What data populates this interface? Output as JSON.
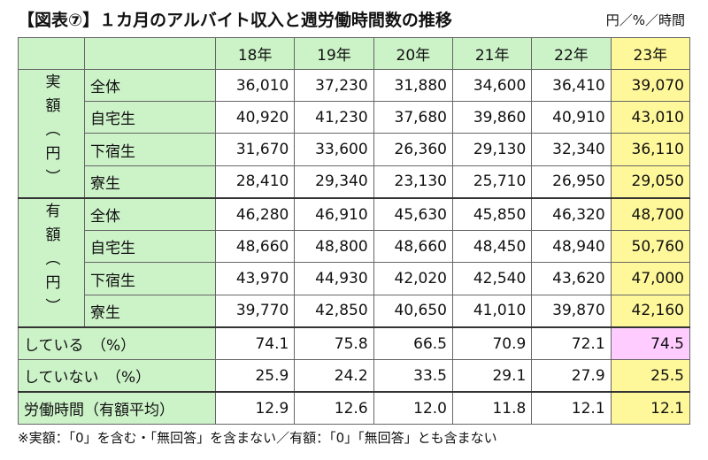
{
  "title": "【図表⑦】１カ月のアルバイト収入と週労働時間数の推移",
  "units": "円／%／時間",
  "columns": [
    "18年",
    "19年",
    "20年",
    "21年",
    "22年",
    "23年"
  ],
  "sections": [
    {
      "label": "実額（円）",
      "rows": [
        {
          "label": "全体",
          "values": [
            "36,010",
            "37,230",
            "31,880",
            "34,600",
            "36,410",
            "39,070"
          ]
        },
        {
          "label": "自宅生",
          "values": [
            "40,920",
            "41,230",
            "37,680",
            "39,860",
            "40,910",
            "43,010"
          ]
        },
        {
          "label": "下宿生",
          "values": [
            "31,670",
            "33,600",
            "26,360",
            "29,130",
            "32,340",
            "36,110"
          ]
        },
        {
          "label": "寮生",
          "values": [
            "28,410",
            "29,340",
            "23,130",
            "25,710",
            "26,950",
            "29,050"
          ]
        }
      ]
    },
    {
      "label": "有額（円）",
      "rows": [
        {
          "label": "全体",
          "values": [
            "46,280",
            "46,910",
            "45,630",
            "45,850",
            "46,320",
            "48,700"
          ]
        },
        {
          "label": "自宅生",
          "values": [
            "48,660",
            "48,800",
            "48,660",
            "48,450",
            "48,940",
            "50,760"
          ]
        },
        {
          "label": "下宿生",
          "values": [
            "43,970",
            "44,930",
            "42,020",
            "42,540",
            "43,620",
            "47,000"
          ]
        },
        {
          "label": "寮生",
          "values": [
            "39,770",
            "42,850",
            "40,650",
            "41,010",
            "39,870",
            "42,160"
          ]
        }
      ]
    }
  ],
  "extra_rows": [
    {
      "label": "している　（%）",
      "values": [
        "74.1",
        "75.8",
        "66.5",
        "70.9",
        "72.1",
        "74.5"
      ]
    },
    {
      "label": "していない　（%）",
      "values": [
        "25.9",
        "24.2",
        "33.5",
        "29.1",
        "27.9",
        "25.5"
      ]
    },
    {
      "label": "労働時間（有額平均）",
      "values": [
        "12.9",
        "12.6",
        "12.0",
        "11.8",
        "12.1",
        "12.1"
      ]
    }
  ],
  "note": "※実額：「0」を含む・「無回答」を含まない／有額：「0」「無回答」とも含まない",
  "colors": {
    "header_green": "#ccf2c8",
    "highlight_yellow": "#fff89a",
    "highlight_pink": "#ffccff"
  }
}
